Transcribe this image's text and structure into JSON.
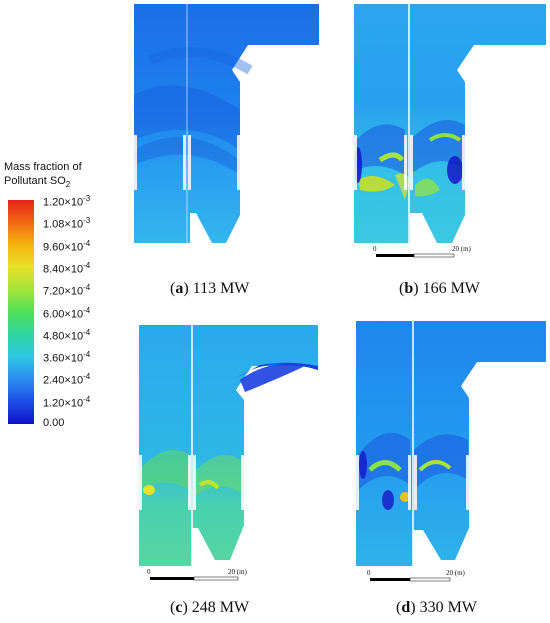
{
  "colorbar": {
    "title_line1": "Mass fraction of",
    "title_line2": "Pollutant SO",
    "title_sub": "2",
    "ticks": [
      {
        "base": "1.20",
        "exp": "-3"
      },
      {
        "base": "1.08",
        "exp": "-3"
      },
      {
        "base": "9.60",
        "exp": "-4"
      },
      {
        "base": "8.40",
        "exp": "-4"
      },
      {
        "base": "7.20",
        "exp": "-4"
      },
      {
        "base": "6.00",
        "exp": "-4"
      },
      {
        "base": "4.80",
        "exp": "-4"
      },
      {
        "base": "3.60",
        "exp": "-4"
      },
      {
        "base": "2.40",
        "exp": "-4"
      },
      {
        "base": "1.20",
        "exp": "-4"
      },
      {
        "base": "0.00",
        "exp": ""
      }
    ],
    "times": "×10",
    "colors": [
      "#e8231a",
      "#f06a14",
      "#f5b50f",
      "#e8e12a",
      "#a5e43a",
      "#4fe05a",
      "#2fd7a0",
      "#2ec6e2",
      "#2a8df0",
      "#1b4ee6",
      "#1111c8"
    ]
  },
  "panels": [
    {
      "letter": "a",
      "label": " 113 MW",
      "scale": {
        "zero": "",
        "end": ""
      }
    },
    {
      "letter": "b",
      "label": " 166 MW",
      "scale": {
        "zero": "0",
        "end": "20 (m)"
      }
    },
    {
      "letter": "c",
      "label": " 248 MW",
      "scale": {
        "zero": "0",
        "end": "20 (m)"
      }
    },
    {
      "letter": "d",
      "label": " 330 MW",
      "scale": {
        "zero": "0",
        "end": "20 (m)"
      }
    }
  ]
}
